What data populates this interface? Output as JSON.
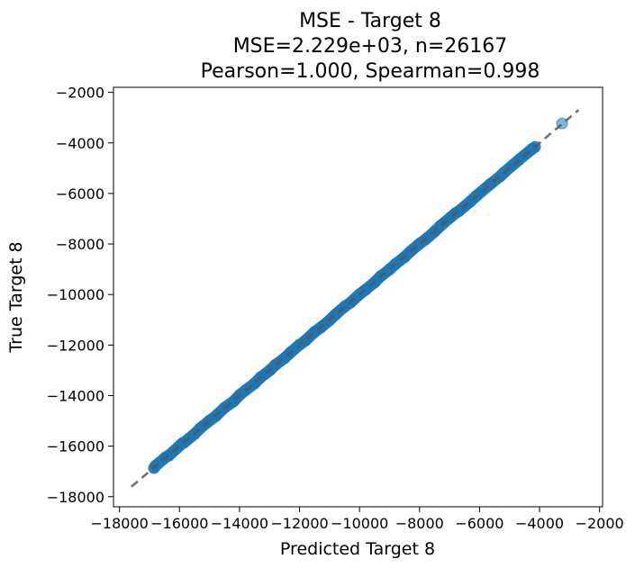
{
  "chart_data": {
    "type": "scatter",
    "title_lines": [
      "MSE - Target 8",
      "MSE=2.229e+03, n=26167",
      "Pearson=1.000, Spearman=0.998"
    ],
    "xlabel": "Predicted Target 8",
    "ylabel": "True Target 8",
    "xlim": [
      -18200,
      -1900
    ],
    "ylim": [
      -18400,
      -1800
    ],
    "xticks": [
      -18000,
      -16000,
      -14000,
      -12000,
      -10000,
      -8000,
      -6000,
      -4000,
      -2000
    ],
    "yticks": [
      -18000,
      -16000,
      -14000,
      -12000,
      -10000,
      -8000,
      -6000,
      -4000,
      -2000
    ],
    "xtick_labels": [
      "−18000",
      "−16000",
      "−14000",
      "−12000",
      "−10000",
      "−8000",
      "−6000",
      "−4000",
      "−2000"
    ],
    "ytick_labels": [
      "−18000",
      "−16000",
      "−14000",
      "−12000",
      "−10000",
      "−8000",
      "−6000",
      "−4000",
      "−2000"
    ],
    "reference_line": {
      "style": "dashed",
      "color": "#555555",
      "from": [
        -17600,
        -17600
      ],
      "to": [
        -2700,
        -2700
      ]
    },
    "point_color": "#1f77b4",
    "grid": false,
    "series": [
      {
        "values": [
          [
            -16850,
            -16870
          ],
          [
            -16800,
            -16780
          ],
          [
            -16450,
            -16430
          ],
          [
            -16350,
            -16370
          ],
          [
            -15900,
            -15880
          ],
          [
            -15850,
            -15860
          ],
          [
            -15500,
            -15520
          ],
          [
            -15300,
            -15280
          ],
          [
            -15000,
            -14990
          ],
          [
            -14800,
            -14820
          ],
          [
            -14500,
            -14480
          ],
          [
            -14200,
            -14230
          ],
          [
            -14000,
            -13980
          ],
          [
            -13800,
            -13790
          ],
          [
            -13500,
            -13520
          ],
          [
            -13300,
            -13280
          ],
          [
            -13000,
            -13010
          ],
          [
            -12800,
            -12780
          ],
          [
            -12500,
            -12520
          ],
          [
            -12300,
            -12290
          ],
          [
            -12000,
            -11990
          ],
          [
            -11800,
            -11820
          ],
          [
            -11500,
            -11480
          ],
          [
            -11300,
            -11310
          ],
          [
            -11000,
            -11020
          ],
          [
            -10800,
            -10790
          ],
          [
            -10500,
            -10480
          ],
          [
            -10300,
            -10320
          ],
          [
            -10000,
            -9990
          ],
          [
            -9800,
            -9810
          ],
          [
            -9500,
            -9520
          ],
          [
            -9300,
            -9280
          ],
          [
            -9000,
            -9010
          ],
          [
            -8800,
            -8790
          ],
          [
            -8500,
            -8520
          ],
          [
            -8300,
            -8290
          ],
          [
            -8000,
            -7990
          ],
          [
            -7800,
            -7820
          ],
          [
            -7500,
            -7510
          ],
          [
            -7300,
            -7280
          ],
          [
            -6800,
            -6780
          ],
          [
            -6700,
            -6710
          ],
          [
            -6300,
            -6310
          ],
          [
            -6100,
            -6090
          ],
          [
            -5650,
            -5640
          ],
          [
            -5300,
            -5310
          ],
          [
            -5200,
            -5190
          ],
          [
            -4700,
            -4680
          ],
          [
            -4250,
            -4240
          ],
          [
            -4150,
            -4160
          ],
          [
            -3250,
            -3230
          ]
        ]
      }
    ]
  }
}
